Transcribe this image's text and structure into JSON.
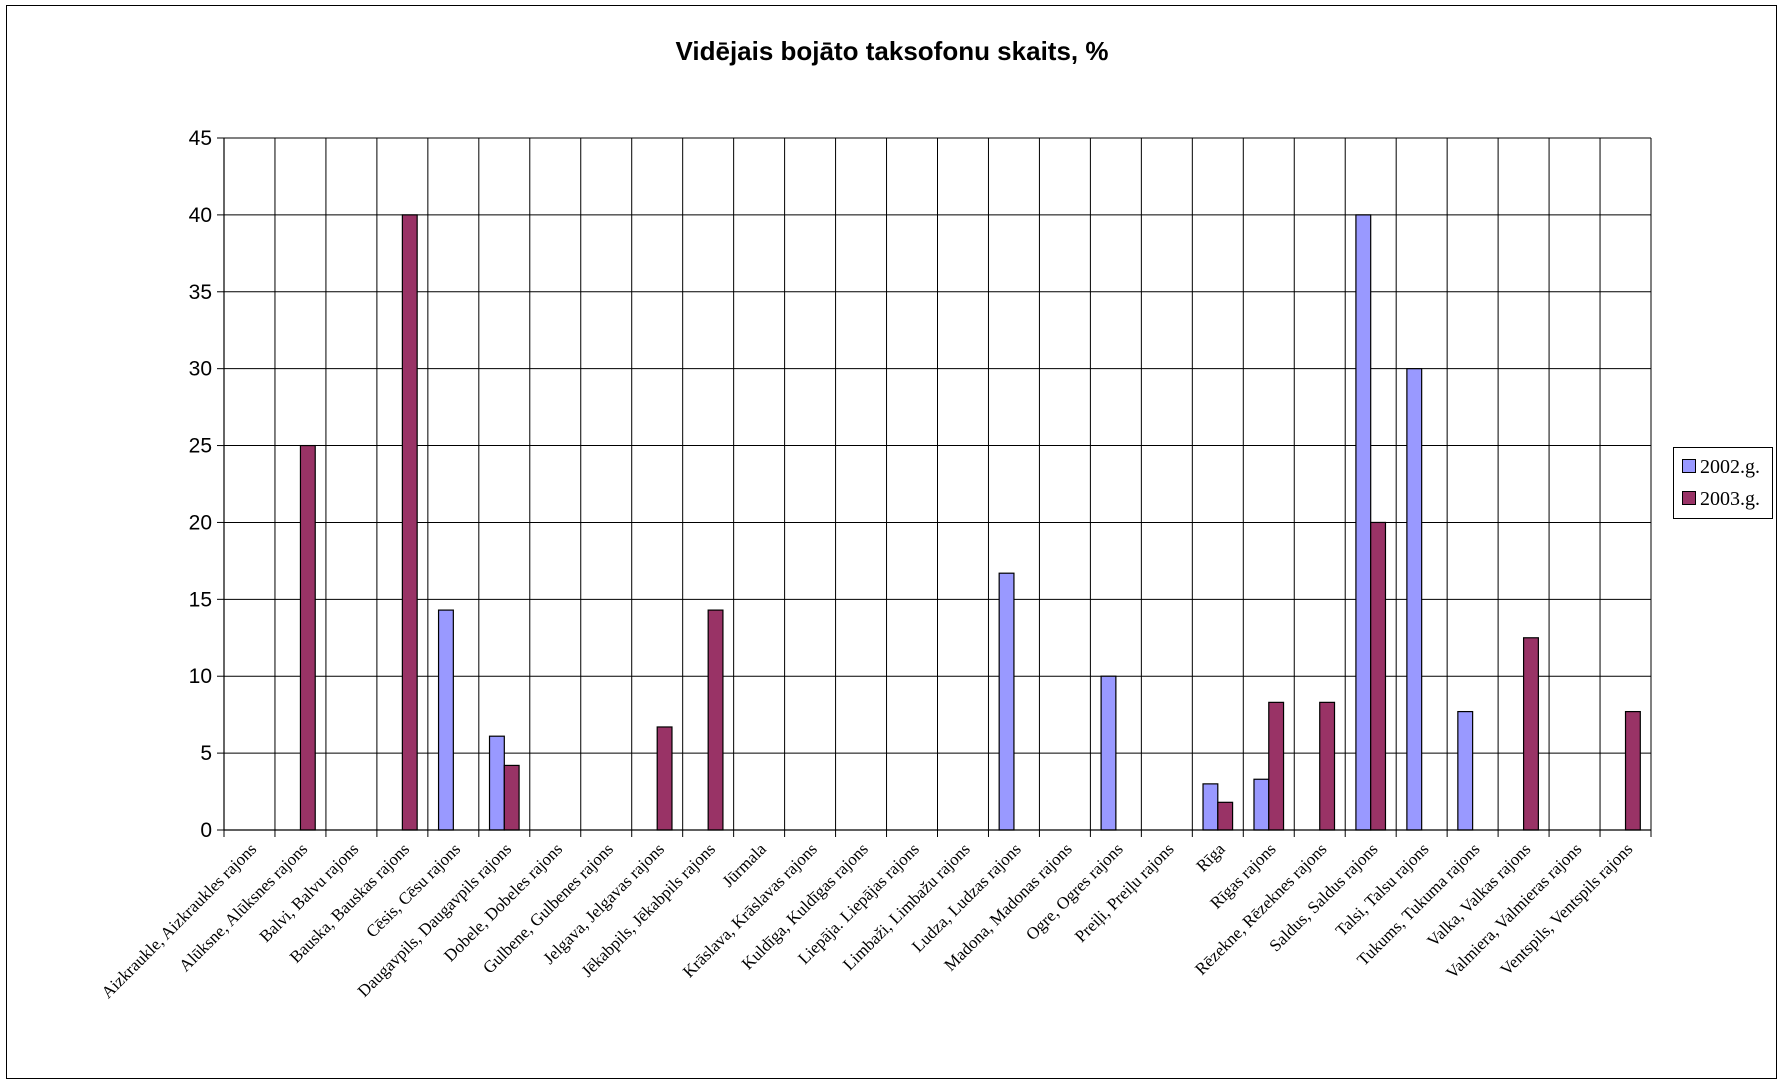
{
  "chart_data": {
    "type": "bar",
    "title": "Vidējais bojāto taksofonu skaits, %",
    "xlabel": "",
    "ylabel": "",
    "ylim": [
      0,
      45
    ],
    "yticks": [
      0,
      5,
      10,
      15,
      20,
      25,
      30,
      35,
      40,
      45
    ],
    "grid": true,
    "legend_position": "right",
    "categories": [
      "Aizkraukle, Aizkraukles rajons",
      "Alūksne, Alūksnes rajons",
      "Balvi, Balvu rajons",
      "Bauska, Bauskas rajons",
      "Cēsis, Cēsu rajons",
      "Daugavpils, Daugavpils rajons",
      "Dobele, Dobeles rajons",
      "Gulbene, Gulbenes rajons",
      "Jelgava, Jelgavas rajons",
      "Jēkabpils, Jēkabpils rajons",
      "Jūrmala",
      "Krāslava, Krāslavas rajons",
      "Kuldīga, Kuldīgas rajons",
      "Liepāja. Liepājas rajons",
      "Limbaži, Limbažu rajons",
      "Ludza, Ludzas rajons",
      "Madona, Madonas rajons",
      "Ogre, Ogres rajons",
      "Preiļi, Preiļu rajons",
      "Rīga",
      "Rīgas rajons",
      "Rēzekne, Rēzeknes rajons",
      "Saldus, Saldus rajons",
      "Talsi, Talsu rajons",
      "Tukums, Tukuma rajons",
      "Valka, Valkas rajons",
      "Valmiera, Valmieras rajons",
      "Ventspils, Ventspils rajons"
    ],
    "series": [
      {
        "name": "2002.g.",
        "color": "#9999ff",
        "values": [
          0,
          0,
          0,
          0,
          14.3,
          6.1,
          0,
          0,
          0,
          0,
          0,
          0,
          0,
          0,
          0,
          16.7,
          0,
          10,
          0,
          3,
          3.3,
          0,
          40,
          30,
          7.7,
          0,
          0,
          0
        ]
      },
      {
        "name": "2003.g.",
        "color": "#993366",
        "values": [
          0,
          25,
          0,
          40,
          0,
          4.2,
          0,
          0,
          6.7,
          14.3,
          0,
          0,
          0,
          0,
          0,
          0,
          0,
          0,
          0,
          1.8,
          8.3,
          8.3,
          20,
          0,
          0,
          12.5,
          0,
          7.7
        ]
      }
    ]
  }
}
